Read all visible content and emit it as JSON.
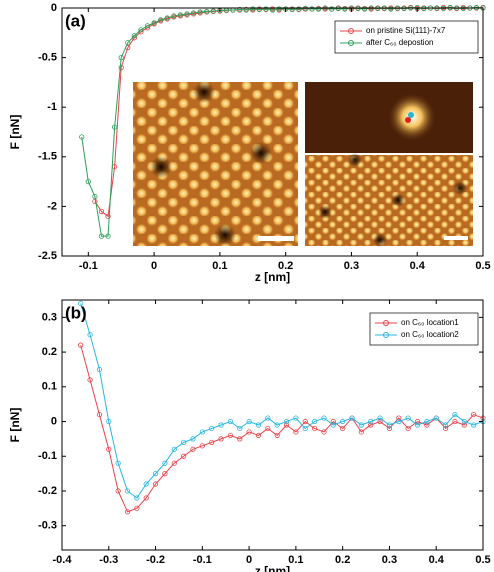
{
  "chart_data": [
    {
      "type": "line",
      "panel_label": "(a)",
      "xlabel": "z [nm]",
      "ylabel": "F [nN]",
      "xlim": [
        -0.14,
        0.5
      ],
      "ylim": [
        -2.5,
        0
      ],
      "xticks": [
        -0.1,
        0,
        0.1,
        0.2,
        0.3,
        0.4,
        0.5
      ],
      "yticks": [
        -2.5,
        -2,
        -1.5,
        -1,
        -0.5,
        0
      ],
      "legend": "upper right",
      "x": [
        -0.11,
        -0.1,
        -0.09,
        -0.08,
        -0.07,
        -0.06,
        -0.05,
        -0.04,
        -0.03,
        -0.02,
        -0.01,
        0,
        0.01,
        0.02,
        0.03,
        0.04,
        0.05,
        0.06,
        0.07,
        0.08,
        0.09,
        0.1,
        0.11,
        0.12,
        0.13,
        0.14,
        0.15,
        0.16,
        0.17,
        0.18,
        0.19,
        0.2,
        0.21,
        0.22,
        0.23,
        0.24,
        0.25,
        0.26,
        0.27,
        0.28,
        0.29,
        0.3,
        0.31,
        0.32,
        0.33,
        0.34,
        0.35,
        0.36,
        0.37,
        0.38,
        0.39,
        0.4,
        0.41,
        0.42,
        0.43,
        0.44,
        0.45,
        0.46,
        0.47,
        0.48,
        0.49,
        0.5
      ],
      "series": [
        {
          "name": "on pristine Si(111)-7x7",
          "color": "#e8434a",
          "values": [
            null,
            null,
            -1.95,
            -2.05,
            -2.1,
            -1.6,
            -0.6,
            -0.4,
            -0.3,
            -0.24,
            -0.2,
            -0.16,
            -0.13,
            -0.11,
            -0.09,
            -0.08,
            -0.07,
            -0.06,
            -0.05,
            -0.04,
            -0.035,
            -0.03,
            -0.025,
            -0.02,
            -0.02,
            -0.015,
            -0.02,
            -0.01,
            -0.015,
            -0.01,
            -0.02,
            -0.01,
            -0.01,
            -0.015,
            -0.01,
            -0.01,
            -0.005,
            -0.01,
            -0.01,
            0,
            -0.005,
            -0.01,
            0,
            -0.005,
            -0.01,
            0,
            -0.005,
            0,
            -0.005,
            0,
            0.005,
            -0.005,
            0,
            0,
            -0.005,
            0.005,
            0,
            -0.005,
            0.005,
            0,
            0,
            0.005
          ]
        },
        {
          "name": "after C₆₀ depostion",
          "color": "#2ca05a",
          "values": [
            -1.3,
            -1.75,
            -1.9,
            -2.3,
            -2.3,
            -1.2,
            -0.5,
            -0.35,
            -0.28,
            -0.22,
            -0.18,
            -0.15,
            -0.12,
            -0.1,
            -0.08,
            -0.07,
            -0.06,
            -0.05,
            -0.04,
            -0.035,
            -0.03,
            -0.025,
            -0.02,
            -0.02,
            -0.015,
            -0.02,
            -0.01,
            -0.015,
            -0.01,
            -0.02,
            -0.01,
            -0.01,
            -0.015,
            -0.01,
            -0.005,
            -0.01,
            -0.01,
            0,
            -0.01,
            -0.005,
            -0.01,
            0,
            -0.005,
            -0.01,
            0,
            -0.005,
            0,
            -0.01,
            0,
            -0.005,
            0,
            0.005,
            -0.005,
            0,
            0,
            -0.005,
            0.005,
            0,
            -0.005,
            0,
            0.005,
            0
          ]
        }
      ]
    },
    {
      "type": "line",
      "panel_label": "(b)",
      "xlabel": "z [nm]",
      "ylabel": "F [nN]",
      "xlim": [
        -0.4,
        0.5
      ],
      "ylim": [
        -0.37,
        0.35
      ],
      "xticks": [
        -0.4,
        -0.3,
        -0.2,
        -0.1,
        0,
        0.1,
        0.2,
        0.3,
        0.4,
        0.5
      ],
      "yticks": [
        -0.3,
        -0.2,
        -0.1,
        0,
        0.1,
        0.2,
        0.3
      ],
      "legend": "upper right",
      "x": [
        -0.36,
        -0.34,
        -0.32,
        -0.3,
        -0.28,
        -0.26,
        -0.24,
        -0.22,
        -0.2,
        -0.18,
        -0.16,
        -0.14,
        -0.12,
        -0.1,
        -0.08,
        -0.06,
        -0.04,
        -0.02,
        0,
        0.02,
        0.04,
        0.06,
        0.08,
        0.1,
        0.12,
        0.14,
        0.16,
        0.18,
        0.2,
        0.22,
        0.24,
        0.26,
        0.28,
        0.3,
        0.32,
        0.34,
        0.36,
        0.38,
        0.4,
        0.42,
        0.44,
        0.46,
        0.48,
        0.5
      ],
      "series": [
        {
          "name": "on C₆₀ location1",
          "color": "#e8434a",
          "values": [
            0.22,
            0.12,
            0.02,
            -0.08,
            -0.2,
            -0.26,
            -0.25,
            -0.22,
            -0.18,
            -0.15,
            -0.12,
            -0.1,
            -0.08,
            -0.07,
            -0.06,
            -0.05,
            -0.04,
            -0.05,
            -0.03,
            -0.04,
            -0.02,
            -0.04,
            -0.01,
            -0.03,
            0,
            -0.02,
            -0.03,
            0,
            -0.02,
            0.01,
            -0.03,
            -0.01,
            0,
            -0.02,
            0.01,
            -0.02,
            0,
            -0.01,
            0.01,
            -0.02,
            0,
            -0.01,
            0.02,
            0.01
          ]
        },
        {
          "name": "on C₆₀ location2",
          "color": "#29b6e0",
          "values": [
            0.34,
            0.25,
            0.15,
            0,
            -0.12,
            -0.2,
            -0.22,
            -0.18,
            -0.15,
            -0.12,
            -0.08,
            -0.06,
            -0.05,
            -0.03,
            -0.02,
            -0.01,
            0,
            -0.02,
            0,
            -0.01,
            0.01,
            -0.01,
            0,
            0.01,
            -0.02,
            0,
            0.01,
            -0.01,
            0,
            0.01,
            -0.01,
            0,
            0.01,
            -0.01,
            0,
            0.01,
            -0.01,
            0,
            0.01,
            -0.01,
            0.02,
            0,
            -0.01,
            0
          ]
        }
      ]
    }
  ]
}
